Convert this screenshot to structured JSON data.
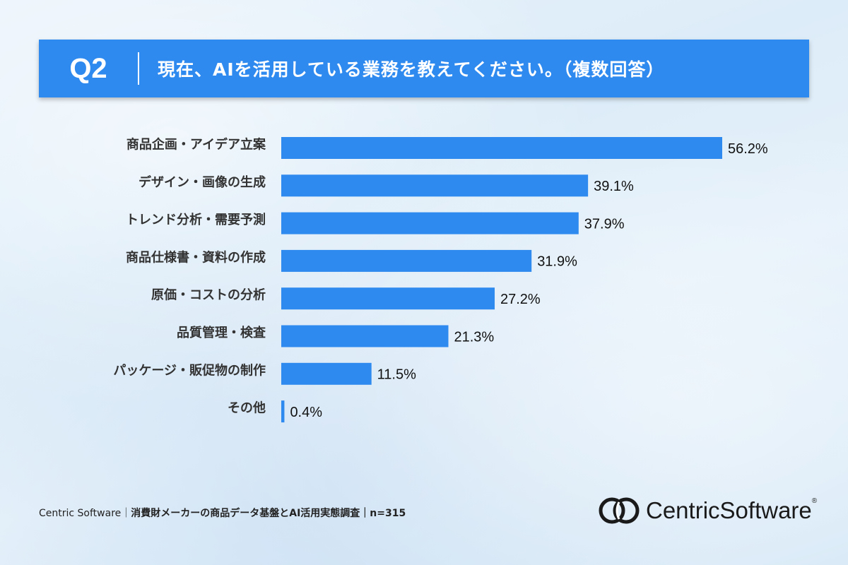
{
  "header": {
    "q_number": "Q2",
    "question": "現在、AIを活用している業務を教えてください。（複数回答）"
  },
  "chart_data": {
    "type": "bar",
    "orientation": "horizontal",
    "categories": [
      "商品企画・アイデア立案",
      "デザイン・画像の生成",
      "トレンド分析・需要予測",
      "商品仕様書・資料の作成",
      "原価・コストの分析",
      "品質管理・検査",
      "パッケージ・販促物の制作",
      "その他"
    ],
    "values": [
      56.2,
      39.1,
      37.9,
      31.9,
      27.2,
      21.3,
      11.5,
      0.4
    ],
    "value_labels": [
      "56.2%",
      "39.1%",
      "37.9%",
      "31.9%",
      "27.2%",
      "21.3%",
      "11.5%",
      "0.4%"
    ],
    "unit": "%",
    "xlim": [
      0,
      60
    ],
    "grid": false,
    "bar_color": "#2f8aef"
  },
  "footer": {
    "source_prefix": "Centric Software｜",
    "source_title": "消費財メーカーの商品データ基盤とAI活用実態調査",
    "sample": "｜n=315"
  },
  "logo": {
    "text_a": "Centric",
    "text_b": "Software",
    "mark": "®"
  }
}
